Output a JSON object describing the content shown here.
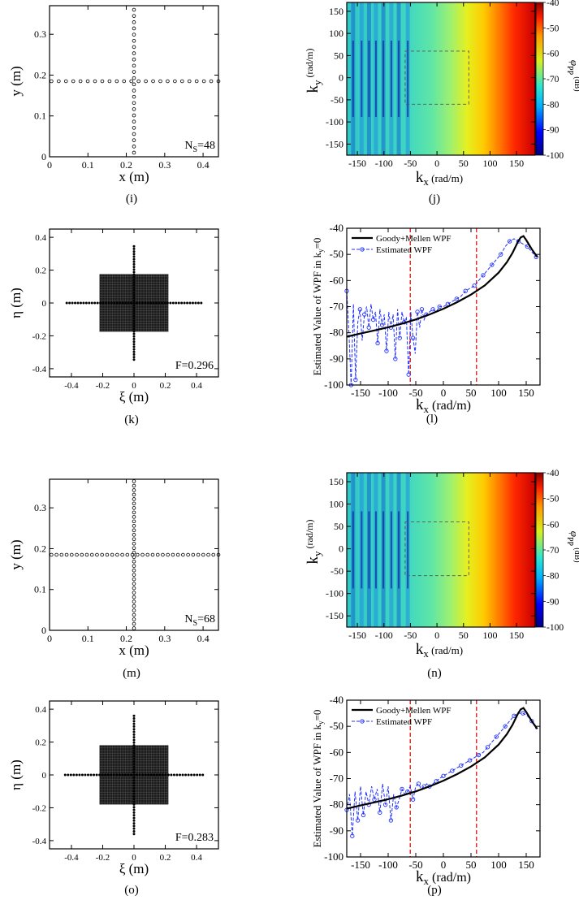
{
  "figure": {
    "panel_labels": [
      "(i)",
      "(j)",
      "(k)",
      "(l)",
      "(m)",
      "(n)",
      "(o)",
      "(p)"
    ]
  },
  "chart_data": [
    {
      "panel": "(i)",
      "type": "scatter",
      "marker": "open-circle",
      "xlabel": "x (m)",
      "ylabel": "y (m)",
      "xlim": [
        0,
        0.44
      ],
      "ylim": [
        0,
        0.37
      ],
      "xticks": [
        0,
        0.1,
        0.2,
        0.3,
        0.4
      ],
      "yticks": [
        0,
        0.1,
        0.2,
        0.3
      ],
      "xtick_labels": [
        "0",
        "0.1",
        "0.2",
        "0.3",
        "0.4"
      ],
      "ytick_labels": [
        "0",
        "0.1",
        "0.2",
        "0.3"
      ],
      "annotation_main": "N",
      "annotation_sub": "S",
      "annotation_rest": "=48",
      "sensor_count": 48,
      "horizontal_arm": {
        "y": 0.185,
        "x_range": [
          0.005,
          0.44
        ]
      },
      "vertical_arm": {
        "x": 0.22,
        "y_range": [
          0.01,
          0.36
        ]
      }
    },
    {
      "panel": "(j)",
      "type": "heatmap",
      "xlabel_main": "k",
      "xlabel_sub": "x",
      "xlabel_unit": "(rad/m)",
      "ylabel_main": "k",
      "ylabel_sub": "y",
      "ylabel_unit": "(rad/m)",
      "xlim": [
        -170,
        185
      ],
      "ylim": [
        -175,
        170
      ],
      "xticks": [
        -150,
        -100,
        -50,
        0,
        50,
        100,
        150
      ],
      "yticks": [
        -150,
        -100,
        -50,
        0,
        50,
        100,
        150
      ],
      "xtick_labels": [
        "-150",
        "-100",
        "-50",
        "0",
        "50",
        "100",
        "150"
      ],
      "ytick_labels": [
        "-150",
        "-100",
        "-50",
        "0",
        "50",
        "100",
        "150"
      ],
      "colorbar": {
        "range": [
          -100,
          -40
        ],
        "ticks": [
          -40,
          -50,
          -60,
          -70,
          -80,
          -90,
          -100
        ],
        "tick_labels": [
          "-40",
          "-50",
          "-60",
          "-70",
          "-80",
          "-90",
          "-100"
        ],
        "label_main": "φ",
        "label_sub": "PP",
        "label_unit": "(dB)"
      },
      "region_box": {
        "kx": [
          -60,
          60
        ],
        "ky": [
          -60,
          60
        ]
      }
    },
    {
      "panel": "(k)",
      "type": "scatter",
      "marker": "filled-dot",
      "xlabel": "ξ (m)",
      "ylabel": "η (m)",
      "xlim": [
        -0.54,
        0.54
      ],
      "ylim": [
        -0.45,
        0.45
      ],
      "xticks": [
        -0.4,
        -0.2,
        0,
        0.2,
        0.4
      ],
      "yticks": [
        -0.4,
        -0.2,
        0,
        0.2,
        0.4
      ],
      "xtick_labels": [
        "-0.4",
        "-0.2",
        "0",
        "0.2",
        "0.4"
      ],
      "ytick_labels": [
        "-0.4",
        "-0.2",
        "0",
        "0.2",
        "0.4"
      ],
      "annotation": "F=0.296",
      "F": 0.296,
      "dense_block": {
        "xi": [
          -0.22,
          0.22
        ],
        "eta": [
          -0.175,
          0.175
        ]
      },
      "arms": {
        "xi_range": [
          -0.43,
          0.43
        ],
        "eta_range": [
          -0.345,
          0.345
        ]
      }
    },
    {
      "panel": "(l)",
      "type": "line",
      "xlabel_main": "k",
      "xlabel_sub": "x",
      "xlabel_unit": "(rad/m)",
      "ylabel_prefix": "Estimated Value of WPF in k",
      "ylabel_sub": "y",
      "ylabel_suffix": "=0",
      "xlim": [
        -175,
        175
      ],
      "ylim": [
        -100,
        -40
      ],
      "xticks": [
        -150,
        -100,
        -50,
        0,
        50,
        100,
        150
      ],
      "yticks": [
        -100,
        -90,
        -80,
        -70,
        -60,
        -50,
        -40
      ],
      "xtick_labels": [
        "-150",
        "-100",
        "-50",
        "0",
        "50",
        "100",
        "150"
      ],
      "ytick_labels": [
        "-100",
        "-90",
        "-80",
        "-70",
        "-60",
        "-50",
        "-40"
      ],
      "vlines": [
        -60,
        60
      ],
      "legend_position": "top-left",
      "series": [
        {
          "name": "Goody+Mellen WPF",
          "style": "solid-black",
          "x": [
            -175,
            -150,
            -125,
            -100,
            -75,
            -50,
            -25,
            0,
            25,
            50,
            75,
            100,
            115,
            125,
            135,
            140,
            145,
            150,
            160,
            170
          ],
          "y": [
            -81.5,
            -80.3,
            -79.1,
            -77.9,
            -76.5,
            -74.9,
            -73.0,
            -70.8,
            -68.3,
            -65.4,
            -61.9,
            -57.0,
            -53.0,
            -49.5,
            -45.2,
            -43.5,
            -43.0,
            -44.5,
            -48.0,
            -51.0
          ]
        },
        {
          "name": "Estimated WPF",
          "style": "dashed-blue-circles",
          "x": [
            -175,
            -171,
            -167,
            -163,
            -159,
            -155,
            -151,
            -147,
            -143,
            -139,
            -135,
            -131,
            -127,
            -123,
            -119,
            -115,
            -111,
            -107,
            -103,
            -99,
            -95,
            -91,
            -87,
            -83,
            -79,
            -75,
            -71,
            -67,
            -63,
            -59,
            -55,
            -51,
            -47,
            -43,
            -39,
            -35,
            -31,
            -25,
            -19,
            -13,
            -7,
            0,
            8,
            16,
            24,
            32,
            40,
            48,
            56,
            64,
            72,
            80,
            88,
            96,
            104,
            112,
            120,
            128,
            136,
            144,
            152,
            160,
            168
          ],
          "y": [
            -64,
            -80,
            -100,
            -69,
            -98,
            -76,
            -71,
            -83,
            -73,
            -70,
            -78,
            -69,
            -75,
            -72,
            -84,
            -71,
            -77,
            -73,
            -87,
            -72,
            -78,
            -73,
            -90,
            -71,
            -82,
            -72,
            -76,
            -74,
            -96,
            -72,
            -82,
            -88,
            -72,
            -78,
            -71,
            -75,
            -73,
            -72,
            -71,
            -72,
            -70,
            -70,
            -69,
            -68,
            -67,
            -66,
            -64,
            -63,
            -62,
            -60,
            -58,
            -56,
            -54,
            -52,
            -50,
            -47,
            -45,
            -44,
            -45,
            -46,
            -47,
            -49,
            -51
          ]
        }
      ]
    },
    {
      "panel": "(m)",
      "type": "scatter",
      "marker": "open-circle",
      "xlabel": "x (m)",
      "ylabel": "y (m)",
      "xlim": [
        0,
        0.44
      ],
      "ylim": [
        0,
        0.37
      ],
      "xticks": [
        0,
        0.1,
        0.2,
        0.3,
        0.4
      ],
      "yticks": [
        0,
        0.1,
        0.2,
        0.3
      ],
      "xtick_labels": [
        "0",
        "0.1",
        "0.2",
        "0.3",
        "0.4"
      ],
      "ytick_labels": [
        "0",
        "0.1",
        "0.2",
        "0.3"
      ],
      "annotation_main": "N",
      "annotation_sub": "S",
      "annotation_rest": "=68",
      "sensor_count": 68,
      "horizontal_arm": {
        "y": 0.185,
        "x_range": [
          0.005,
          0.44
        ]
      },
      "vertical_arm": {
        "x": 0.22,
        "y_range": [
          0.005,
          0.365
        ]
      }
    },
    {
      "panel": "(n)",
      "type": "heatmap",
      "xlabel_main": "k",
      "xlabel_sub": "x",
      "xlabel_unit": "(rad/m)",
      "ylabel_main": "k",
      "ylabel_sub": "y",
      "ylabel_unit": "(rad/m)",
      "xlim": [
        -170,
        185
      ],
      "ylim": [
        -175,
        170
      ],
      "xticks": [
        -150,
        -100,
        -50,
        0,
        50,
        100,
        150
      ],
      "yticks": [
        -150,
        -100,
        -50,
        0,
        50,
        100,
        150
      ],
      "xtick_labels": [
        "-150",
        "-100",
        "-50",
        "0",
        "50",
        "100",
        "150"
      ],
      "ytick_labels": [
        "-150",
        "-100",
        "-50",
        "0",
        "50",
        "100",
        "150"
      ],
      "colorbar": {
        "range": [
          -100,
          -40
        ],
        "ticks": [
          -40,
          -50,
          -60,
          -70,
          -80,
          -90,
          -100
        ],
        "tick_labels": [
          "-40",
          "-50",
          "-60",
          "-70",
          "-80",
          "-90",
          "-100"
        ],
        "label_main": "φ",
        "label_sub": "PP",
        "label_unit": "(dB)"
      },
      "region_box": {
        "kx": [
          -60,
          60
        ],
        "ky": [
          -60,
          60
        ]
      }
    },
    {
      "panel": "(o)",
      "type": "scatter",
      "marker": "filled-dot",
      "xlabel": "ξ (m)",
      "ylabel": "η (m)",
      "xlim": [
        -0.54,
        0.54
      ],
      "ylim": [
        -0.45,
        0.45
      ],
      "xticks": [
        -0.4,
        -0.2,
        0,
        0.2,
        0.4
      ],
      "yticks": [
        -0.4,
        -0.2,
        0,
        0.2,
        0.4
      ],
      "xtick_labels": [
        "-0.4",
        "-0.2",
        "0",
        "0.2",
        "0.4"
      ],
      "ytick_labels": [
        "-0.4",
        "-0.2",
        "0",
        "0.2",
        "0.4"
      ],
      "annotation": "F=0.283",
      "F": 0.283,
      "dense_block": {
        "xi": [
          -0.22,
          0.22
        ],
        "eta": [
          -0.18,
          0.18
        ]
      },
      "arms": {
        "xi_range": [
          -0.44,
          0.44
        ],
        "eta_range": [
          -0.36,
          0.36
        ]
      }
    },
    {
      "panel": "(p)",
      "type": "line",
      "xlabel_main": "k",
      "xlabel_sub": "x",
      "xlabel_unit": "(rad/m)",
      "ylabel_prefix": "Estimated Value of WPF in k",
      "ylabel_sub": "y",
      "ylabel_suffix": "=0",
      "xlim": [
        -175,
        175
      ],
      "ylim": [
        -100,
        -40
      ],
      "xticks": [
        -150,
        -100,
        -50,
        0,
        50,
        100,
        150
      ],
      "yticks": [
        -100,
        -90,
        -80,
        -70,
        -60,
        -50,
        -40
      ],
      "xtick_labels": [
        "-150",
        "-100",
        "-50",
        "0",
        "50",
        "100",
        "150"
      ],
      "ytick_labels": [
        "-100",
        "-90",
        "-80",
        "-70",
        "-60",
        "-50",
        "-40"
      ],
      "vlines": [
        -60,
        60
      ],
      "legend_position": "top-left",
      "series": [
        {
          "name": "Goody+Mellen WPF",
          "style": "solid-black",
          "x": [
            -175,
            -150,
            -125,
            -100,
            -75,
            -50,
            -25,
            0,
            25,
            50,
            75,
            100,
            115,
            125,
            135,
            140,
            145,
            150,
            160,
            170
          ],
          "y": [
            -81.5,
            -80.3,
            -79.1,
            -77.9,
            -76.5,
            -74.9,
            -73.0,
            -70.8,
            -68.3,
            -65.4,
            -61.9,
            -57.0,
            -53.0,
            -49.5,
            -45.2,
            -43.5,
            -43.0,
            -44.5,
            -48.0,
            -51.0
          ]
        },
        {
          "name": "Estimated WPF",
          "style": "dashed-blue-circles",
          "x": [
            -175,
            -170,
            -165,
            -160,
            -155,
            -150,
            -145,
            -140,
            -135,
            -130,
            -125,
            -120,
            -115,
            -110,
            -105,
            -100,
            -95,
            -90,
            -85,
            -80,
            -75,
            -70,
            -65,
            -60,
            -55,
            -50,
            -45,
            -40,
            -35,
            -30,
            -25,
            -19,
            -13,
            -7,
            0,
            8,
            16,
            24,
            32,
            40,
            48,
            56,
            64,
            72,
            80,
            88,
            96,
            104,
            112,
            120,
            128,
            136,
            144,
            152,
            160,
            168
          ],
          "y": [
            -82,
            -76,
            -92,
            -75,
            -86,
            -73,
            -84,
            -75,
            -80,
            -73,
            -78,
            -74,
            -83,
            -72,
            -80,
            -73,
            -86,
            -76,
            -81,
            -78,
            -74,
            -76,
            -75,
            -73,
            -78,
            -73,
            -72,
            -74,
            -73,
            -72,
            -73,
            -72,
            -71,
            -70,
            -69,
            -68,
            -67,
            -66,
            -65,
            -64,
            -63,
            -62,
            -61,
            -60,
            -58,
            -56,
            -54,
            -52,
            -50,
            -48,
            -46,
            -45,
            -45,
            -46,
            -48,
            -51
          ]
        }
      ]
    }
  ]
}
